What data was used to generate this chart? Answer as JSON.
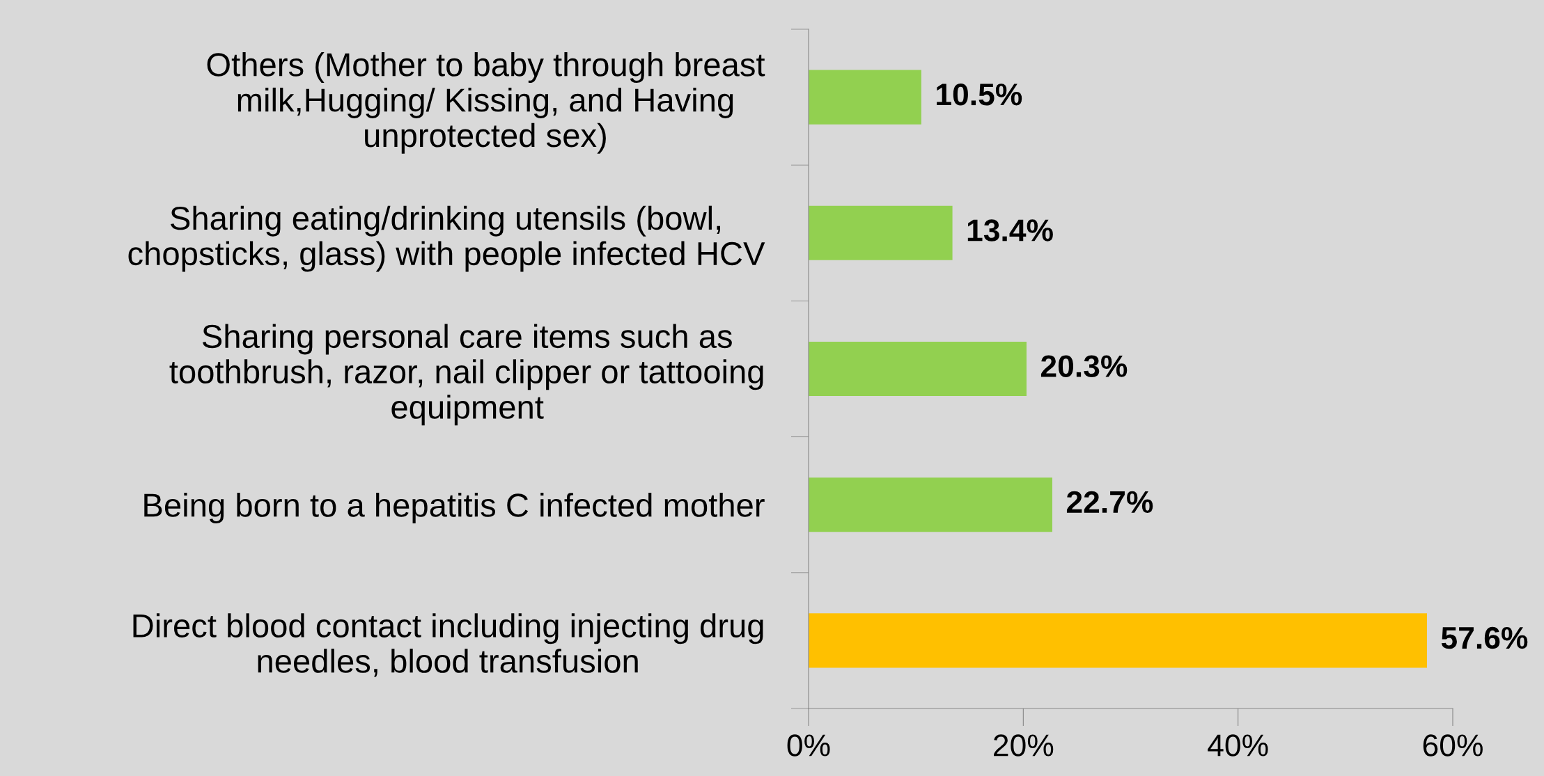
{
  "chart_data": {
    "type": "bar",
    "orientation": "horizontal",
    "categories": [
      "Others (Mother to baby through breast\nmilk,Hugging/ Kissing, and Having\nunprotected sex)",
      "Sharing eating/drinking utensils (bowl,\nchopsticks, glass) with people infected HCV",
      "Sharing personal care items such as\ntoothbrush, razor, nail clipper or tattooing\nequipment",
      "Being born to a hepatitis C infected mother",
      "Direct blood contact including injecting drug\nneedles, blood transfusion"
    ],
    "values": [
      10.5,
      13.4,
      20.3,
      22.7,
      57.6
    ],
    "colors": [
      "#92d050",
      "#92d050",
      "#92d050",
      "#92d050",
      "#ffc000"
    ],
    "value_labels": [
      "10.5%",
      "13.4%",
      "20.3%",
      "22.7%",
      "57.6%"
    ],
    "xlim": [
      0,
      60
    ],
    "xticks": [
      {
        "value": 0,
        "label": "0%"
      },
      {
        "value": 20,
        "label": "20%"
      },
      {
        "value": 40,
        "label": "40%"
      },
      {
        "value": 60,
        "label": "60%"
      }
    ],
    "grid": false
  }
}
